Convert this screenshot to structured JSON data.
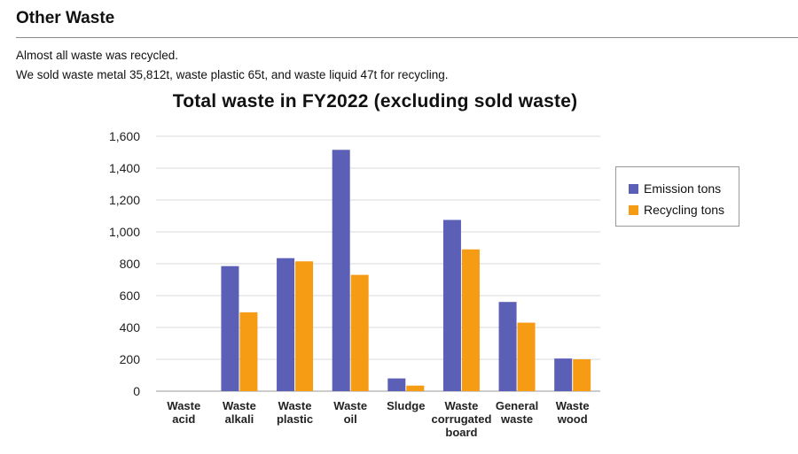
{
  "section": {
    "title": "Other Waste",
    "intro": [
      "Almost all waste was recycled.",
      "We sold waste metal 35,812t, waste plastic 65t, and waste liquid 47t for recycling."
    ]
  },
  "chart_data": {
    "type": "bar",
    "title": "Total waste in FY2022 (excluding sold waste)",
    "categories": [
      [
        "Waste",
        "acid"
      ],
      [
        "Waste",
        "alkali"
      ],
      [
        "Waste",
        "plastic"
      ],
      [
        "Waste",
        "oil"
      ],
      [
        "Sludge"
      ],
      [
        "Waste",
        "corrugated",
        "board"
      ],
      [
        "General",
        "waste"
      ],
      [
        "Waste",
        "wood"
      ]
    ],
    "series": [
      {
        "name": "Emission tons",
        "color": "#5B5FB5",
        "values": [
          0,
          785,
          835,
          1515,
          80,
          1075,
          560,
          205
        ]
      },
      {
        "name": "Recycling tons",
        "color": "#F59B14",
        "values": [
          0,
          495,
          815,
          730,
          35,
          890,
          430,
          200
        ]
      }
    ],
    "ylim": [
      0,
      1600
    ],
    "yticks": [
      "0",
      "200",
      "400",
      "600",
      "800",
      "1,000",
      "1,200",
      "1,400",
      "1,600"
    ],
    "grid": true,
    "legend": "right"
  }
}
